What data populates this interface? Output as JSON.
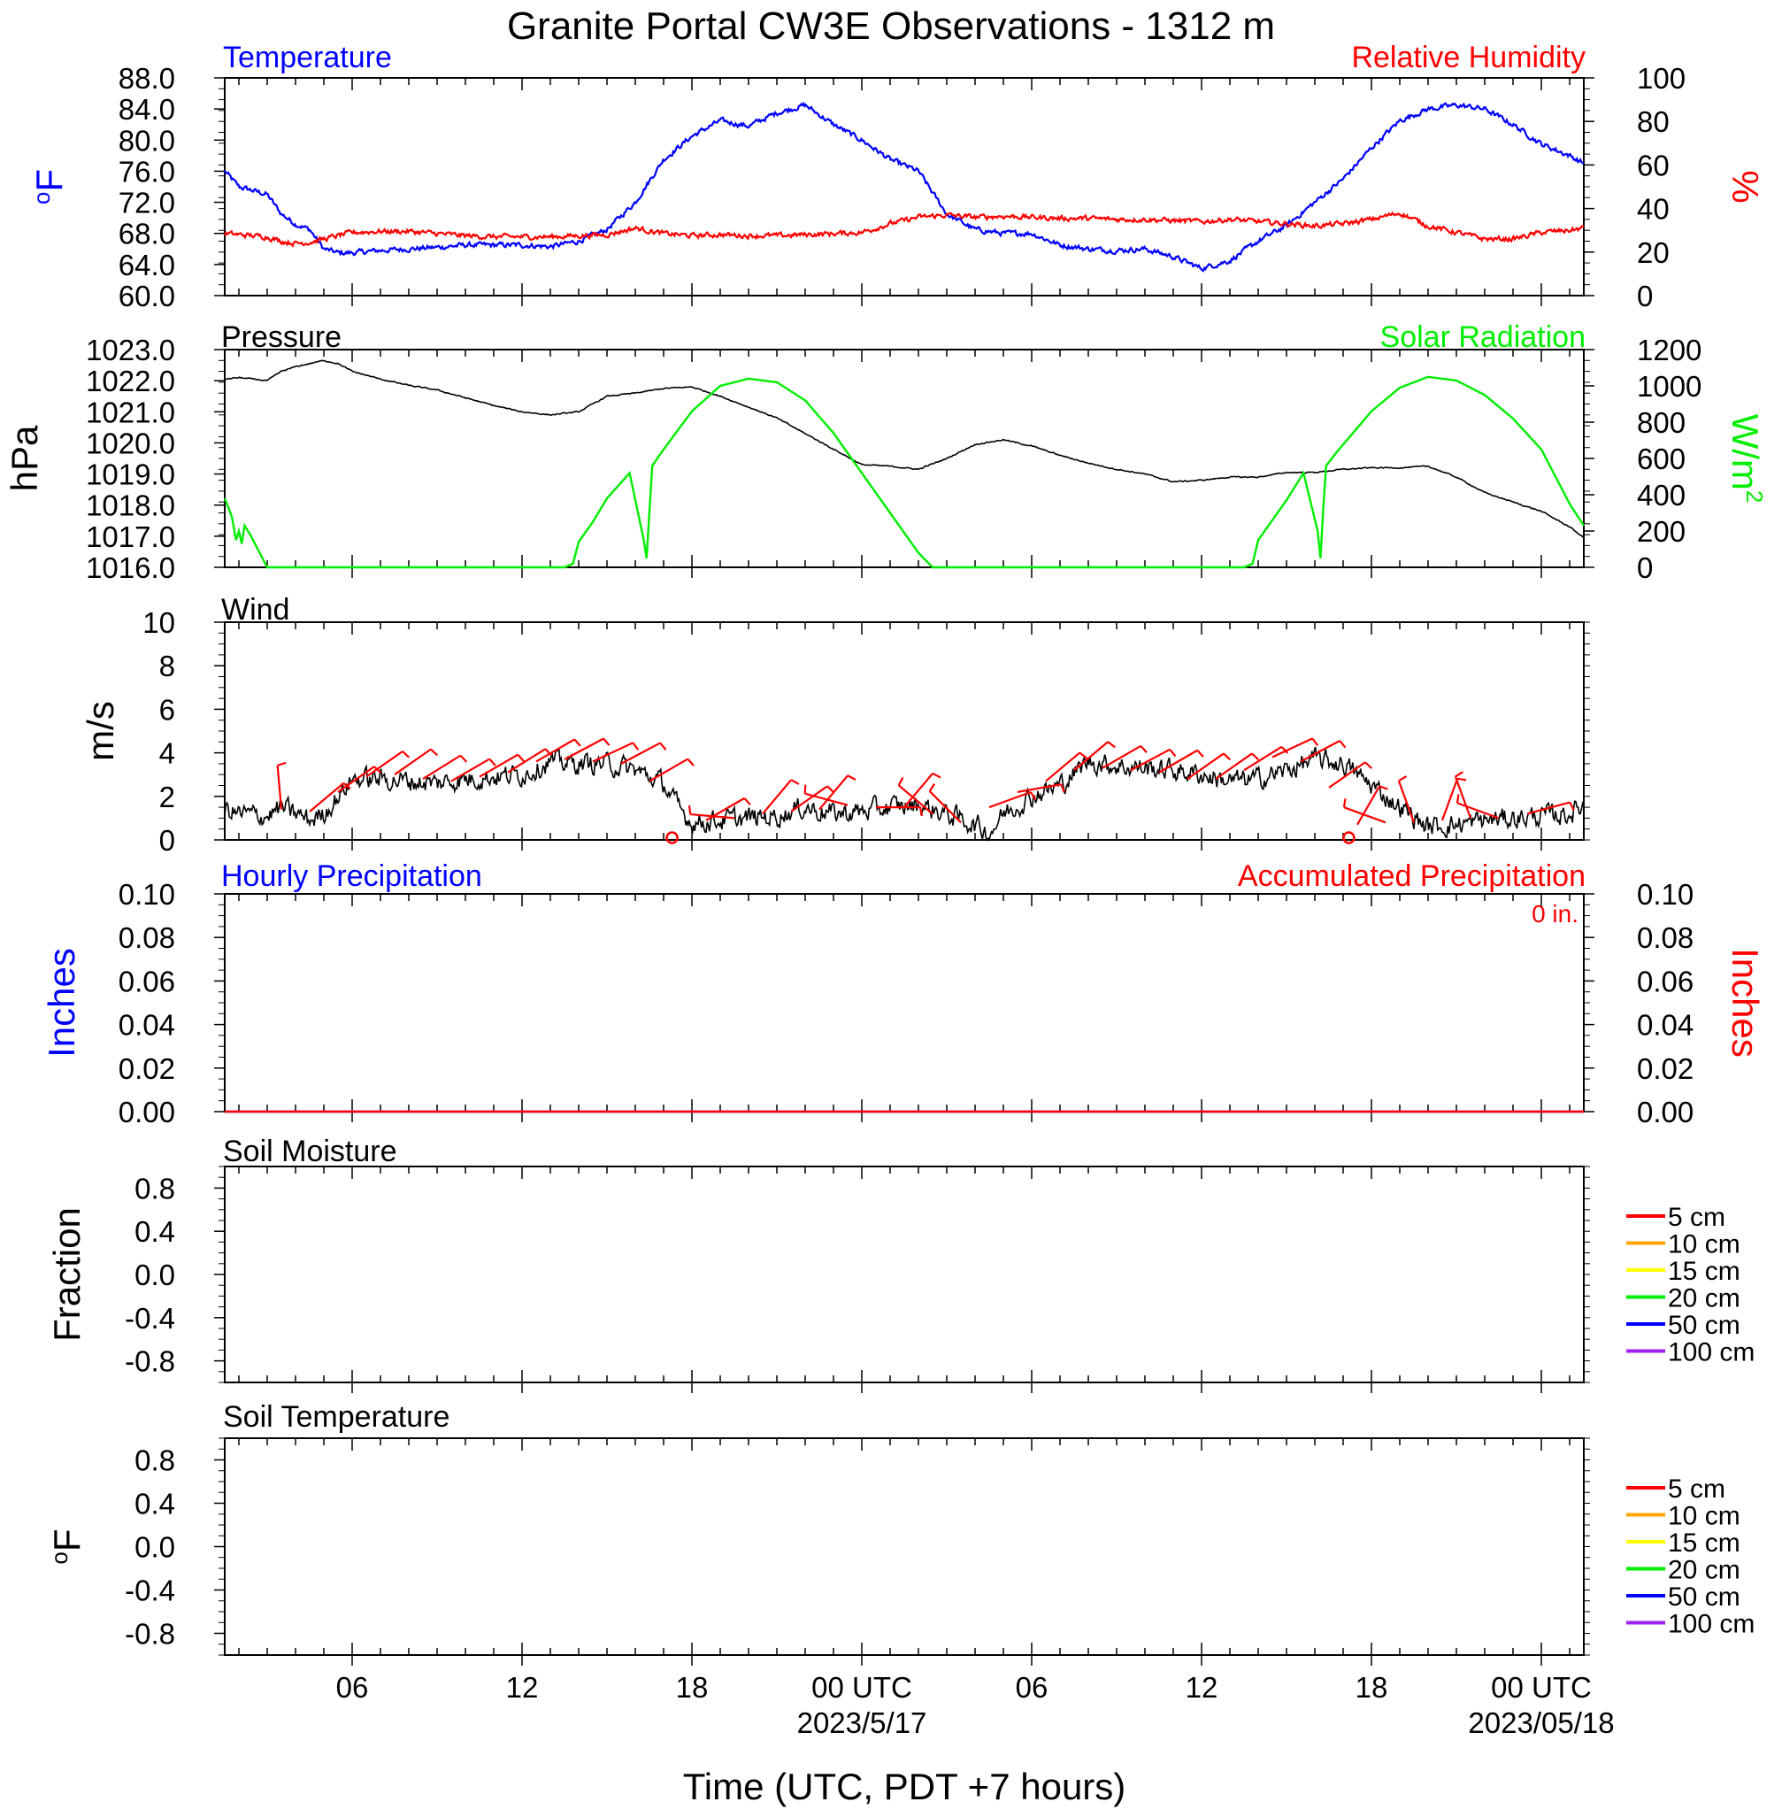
{
  "page": {
    "title": "Granite Portal CW3E Observations - 1312 m",
    "xlabel": "Time (UTC, PDT +7 hours)"
  },
  "time_axis": {
    "range_hours": [
      1.5,
      49.5
    ],
    "ticks": [
      {
        "h": 6,
        "label": "06"
      },
      {
        "h": 12,
        "label": "12"
      },
      {
        "h": 18,
        "label": "18"
      },
      {
        "h": 24,
        "label": "00 UTC",
        "sub": "2023/5/17"
      },
      {
        "h": 30,
        "label": "06"
      },
      {
        "h": 36,
        "label": "12"
      },
      {
        "h": 42,
        "label": "18"
      },
      {
        "h": 48,
        "label": "00 UTC",
        "sub": "2023/05/18"
      }
    ]
  },
  "colors": {
    "blue": "#0000ff",
    "red": "#ff0000",
    "green": "#00ee00",
    "black": "#000000",
    "orange": "#ffa500",
    "yellow": "#ffff00",
    "purple": "#a020f0"
  },
  "chart_data": [
    {
      "type": "line",
      "panel": "temperature_humidity",
      "title_left": "Temperature",
      "title_right": "Relative Humidity",
      "ylabel_left": "oF",
      "ylabel_right": "%",
      "ylim_left": [
        60,
        88
      ],
      "ylim_right": [
        0,
        100
      ],
      "yticks_left": [
        "88.0",
        "84.0",
        "80.0",
        "76.0",
        "72.0",
        "68.0",
        "64.0",
        "60.0"
      ],
      "yticks_right": [
        "100",
        "80",
        "60",
        "40",
        "20",
        "0"
      ],
      "series": [
        {
          "name": "Temperature",
          "axis": "left",
          "color": "#0000ff",
          "noise": 0.35,
          "x": [
            1.5,
            2,
            3,
            3.5,
            4,
            4.5,
            5,
            5.5,
            6,
            7,
            8,
            9,
            10,
            11,
            12,
            13,
            14,
            15,
            16,
            17,
            17.5,
            18,
            19,
            20,
            21,
            22,
            23,
            24,
            25,
            26,
            27,
            28,
            29,
            30,
            31,
            32,
            33,
            34,
            35,
            36,
            37,
            38,
            39,
            40,
            41,
            42,
            43,
            44,
            45,
            46,
            47,
            48,
            49,
            49.5
          ],
          "y": [
            76,
            74,
            73,
            70.5,
            69.2,
            68.5,
            66,
            65.5,
            65.5,
            65.8,
            66,
            66.2,
            66.5,
            66.5,
            66.5,
            66.3,
            67,
            68.5,
            72,
            77.5,
            79,
            80.5,
            82.5,
            81.8,
            83.5,
            84.5,
            82,
            80,
            77.5,
            76,
            70.5,
            68.5,
            68,
            68,
            66.5,
            66,
            65.8,
            66,
            65,
            63.5,
            64.5,
            67,
            69,
            72,
            75,
            79,
            82.5,
            84,
            84.5,
            84,
            82,
            79.5,
            78,
            77
          ]
        },
        {
          "name": "Relative Humidity",
          "axis": "right",
          "color": "#ff0000",
          "noise": 1.2,
          "x": [
            1.5,
            2,
            3,
            3.5,
            4,
            4.5,
            5,
            6,
            7,
            8,
            9,
            10,
            11,
            12,
            13,
            14,
            15,
            16,
            17,
            18,
            19,
            20,
            21,
            22,
            23,
            24,
            25,
            26,
            27,
            28,
            29,
            30,
            31,
            32,
            33,
            34,
            35,
            36,
            37,
            38,
            39,
            40,
            41,
            42,
            43,
            44,
            45,
            46,
            47,
            48,
            49,
            49.5
          ],
          "y": [
            28.5,
            28,
            27,
            25,
            24,
            24.5,
            26,
            29,
            29.5,
            29.5,
            28.5,
            27.5,
            27,
            27,
            27,
            27.5,
            28,
            31,
            28.5,
            27.5,
            28,
            27.5,
            27.5,
            28,
            28.5,
            29,
            33,
            36,
            37,
            36,
            36.5,
            36,
            35.5,
            35.5,
            35,
            35,
            34.5,
            34,
            35,
            34,
            33,
            32,
            33,
            35,
            38,
            32,
            29,
            26,
            26,
            29,
            30,
            31
          ]
        }
      ]
    },
    {
      "type": "line",
      "panel": "pressure_solar",
      "title_left": "Pressure",
      "title_right": "Solar Radiation",
      "ylabel_left": "hPa",
      "ylabel_right": "W/m2",
      "ylim_left": [
        1016,
        1023
      ],
      "ylim_right": [
        0,
        1200
      ],
      "yticks_left": [
        "1023.0",
        "1022.0",
        "1021.0",
        "1020.0",
        "1019.0",
        "1018.0",
        "1017.0",
        "1016.0"
      ],
      "yticks_right": [
        "1200",
        "1000",
        "800",
        "600",
        "400",
        "200",
        "0"
      ],
      "series": [
        {
          "name": "Pressure",
          "axis": "left",
          "color": "#000000",
          "noise": 0.02,
          "x": [
            1.5,
            2,
            3,
            3.5,
            4,
            5,
            5.5,
            6,
            7,
            8,
            9,
            10,
            11,
            12,
            13,
            14,
            15,
            16,
            17,
            18,
            19,
            20,
            21,
            22,
            23,
            24,
            25,
            26,
            27,
            28,
            29,
            30,
            31,
            32,
            33,
            34,
            35,
            36,
            37,
            38,
            39,
            40,
            41,
            42,
            43,
            44,
            45,
            46,
            47,
            48,
            49,
            49.5
          ],
          "y": [
            1022.05,
            1022.1,
            1022.0,
            1022.3,
            1022.45,
            1022.65,
            1022.55,
            1022.3,
            1022.05,
            1021.85,
            1021.7,
            1021.45,
            1021.2,
            1021.0,
            1020.9,
            1021.0,
            1021.5,
            1021.6,
            1021.75,
            1021.8,
            1021.5,
            1021.15,
            1020.8,
            1020.3,
            1019.8,
            1019.3,
            1019.25,
            1019.15,
            1019.5,
            1019.95,
            1020.1,
            1019.9,
            1019.6,
            1019.35,
            1019.15,
            1019.0,
            1018.75,
            1018.8,
            1018.9,
            1018.9,
            1019.05,
            1019.05,
            1019.15,
            1019.2,
            1019.2,
            1019.25,
            1018.9,
            1018.4,
            1018.1,
            1017.8,
            1017.3,
            1016.95
          ]
        },
        {
          "name": "Solar Radiation",
          "axis": "right",
          "color": "#00ee00",
          "noise": 0,
          "x": [
            1.5,
            1.75,
            1.9,
            2,
            2.1,
            2.2,
            2.4,
            2.6,
            3,
            13.5,
            13.8,
            14,
            14.5,
            15,
            15.8,
            16.3,
            16.4,
            16.5,
            16.6,
            17,
            18,
            19,
            20,
            21,
            22,
            23,
            24,
            25,
            26,
            26.5,
            27,
            37.5,
            37.8,
            38,
            38.5,
            39,
            39.6,
            40.1,
            40.2,
            40.3,
            40.4,
            40.8,
            42,
            43,
            44,
            45,
            46,
            47,
            48,
            48.5,
            49,
            49.5
          ],
          "y": [
            380,
            280,
            150,
            200,
            130,
            230,
            180,
            120,
            0,
            0,
            20,
            140,
            250,
            380,
            520,
            150,
            50,
            310,
            560,
            650,
            860,
            1000,
            1040,
            1020,
            920,
            740,
            520,
            300,
            80,
            0,
            0,
            0,
            20,
            150,
            260,
            370,
            520,
            200,
            50,
            330,
            560,
            640,
            860,
            990,
            1050,
            1030,
            950,
            820,
            650,
            500,
            350,
            230
          ]
        }
      ]
    },
    {
      "type": "line",
      "panel": "wind",
      "title_left": "Wind",
      "ylabel_left": "m/s",
      "ylim_left": [
        0,
        10
      ],
      "yticks_left": [
        "10",
        "8",
        "6",
        "4",
        "2",
        "0"
      ],
      "series": [
        {
          "name": "Wind speed",
          "axis": "left",
          "color": "#000000",
          "noise": 0.5,
          "x": [
            1.5,
            2,
            3,
            3.5,
            4,
            4.5,
            5,
            5.5,
            6,
            7,
            8,
            9,
            10,
            11,
            12,
            13,
            14,
            15,
            16,
            17,
            17.5,
            18,
            19,
            20,
            21,
            22,
            23,
            24,
            25,
            26,
            27,
            28,
            28.5,
            29,
            30,
            31,
            32,
            33,
            34,
            35,
            36,
            37,
            38,
            39,
            40,
            41,
            42,
            43,
            44,
            45,
            46,
            47,
            48,
            49,
            49.5
          ],
          "y": [
            1.4,
            1.2,
            1.1,
            1.5,
            1.2,
            0.9,
            1.2,
            2,
            2.8,
            2.8,
            2.7,
            2.6,
            2.8,
            2.9,
            3,
            3.6,
            3.5,
            3.5,
            3.2,
            2.6,
            1.5,
            0.8,
            0.9,
            1,
            1.1,
            1.5,
            1.2,
            1.3,
            1.5,
            1.6,
            1.2,
            0.7,
            0.3,
            1.2,
            2,
            2.5,
            3.6,
            3.4,
            3.3,
            3.2,
            3,
            2.7,
            2.8,
            3.2,
            3.7,
            3.5,
            2.5,
            1.5,
            0.6,
            0.7,
            0.9,
            1,
            1.1,
            1.2,
            1.6
          ]
        }
      ],
      "barbs": {
        "color": "#ff0000",
        "calm_markers_h": [
          17.3,
          41.2
        ],
        "items": [
          {
            "h": 3.5,
            "deg": 355,
            "spd": 1.4
          },
          {
            "h": 4.5,
            "deg": 50,
            "spd": 1.3
          },
          {
            "h": 5.5,
            "deg": 55,
            "spd": 2.2
          },
          {
            "h": 6.5,
            "deg": 55,
            "spd": 2.9
          },
          {
            "h": 7.5,
            "deg": 55,
            "spd": 3
          },
          {
            "h": 8.5,
            "deg": 58,
            "spd": 2.8
          },
          {
            "h": 9.5,
            "deg": 60,
            "spd": 2.7
          },
          {
            "h": 10.5,
            "deg": 60,
            "spd": 2.9
          },
          {
            "h": 11.5,
            "deg": 58,
            "spd": 3.1
          },
          {
            "h": 12.5,
            "deg": 60,
            "spd": 3.6
          },
          {
            "h": 13.5,
            "deg": 62,
            "spd": 3.7
          },
          {
            "h": 14.5,
            "deg": 65,
            "spd": 3.6
          },
          {
            "h": 15.5,
            "deg": 62,
            "spd": 3.5
          },
          {
            "h": 16.5,
            "deg": 60,
            "spd": 2.7
          },
          {
            "h": 18.5,
            "deg": 60,
            "spd": 0.9
          },
          {
            "h": 19.5,
            "deg": 275,
            "spd": 1
          },
          {
            "h": 20.5,
            "deg": 40,
            "spd": 1.2
          },
          {
            "h": 21.5,
            "deg": 55,
            "spd": 1.3
          },
          {
            "h": 22.5,
            "deg": 40,
            "spd": 1.4
          },
          {
            "h": 23.5,
            "deg": 285,
            "spd": 1.6
          },
          {
            "h": 24.5,
            "deg": 90,
            "spd": 1.5
          },
          {
            "h": 25.5,
            "deg": 40,
            "spd": 1.5
          },
          {
            "h": 26.5,
            "deg": 310,
            "spd": 1.2
          },
          {
            "h": 27.5,
            "deg": 315,
            "spd": 0.8
          },
          {
            "h": 28.5,
            "deg": 70,
            "spd": 1.5
          },
          {
            "h": 29.5,
            "deg": 80,
            "spd": 2.2
          },
          {
            "h": 30.5,
            "deg": 50,
            "spd": 2.7
          },
          {
            "h": 31.5,
            "deg": 50,
            "spd": 3.2
          },
          {
            "h": 32.5,
            "deg": 60,
            "spd": 3.3
          },
          {
            "h": 33.5,
            "deg": 62,
            "spd": 3.2
          },
          {
            "h": 34.5,
            "deg": 60,
            "spd": 3.1
          },
          {
            "h": 35.5,
            "deg": 55,
            "spd": 2.8
          },
          {
            "h": 36.5,
            "deg": 55,
            "spd": 2.8
          },
          {
            "h": 37.5,
            "deg": 58,
            "spd": 3.2
          },
          {
            "h": 38.5,
            "deg": 65,
            "spd": 3.8
          },
          {
            "h": 39.5,
            "deg": 62,
            "spd": 3.6
          },
          {
            "h": 40.5,
            "deg": 55,
            "spd": 2.4
          },
          {
            "h": 41.5,
            "deg": 30,
            "spd": 0.7
          },
          {
            "h": 42.5,
            "deg": 290,
            "spd": 0.8
          },
          {
            "h": 43.5,
            "deg": 340,
            "spd": 0.8
          },
          {
            "h": 44.5,
            "deg": 20,
            "spd": 0.9
          },
          {
            "h": 45.5,
            "deg": 340,
            "spd": 1
          },
          {
            "h": 46.5,
            "deg": 290,
            "spd": 1
          },
          {
            "h": 47.5,
            "deg": 75,
            "spd": 1.2
          }
        ]
      }
    },
    {
      "type": "line",
      "panel": "precipitation",
      "title_left": "Hourly Precipitation",
      "title_right": "Accumulated Precipitation",
      "annotation": "0 in.",
      "ylabel_left": "Inches",
      "ylabel_right": "Inches",
      "ylim_left": [
        0,
        0.1
      ],
      "ylim_right": [
        0,
        0.1
      ],
      "yticks_left": [
        "0.10",
        "0.08",
        "0.06",
        "0.04",
        "0.02",
        "0.00"
      ],
      "yticks_right": [
        "0.10",
        "0.08",
        "0.06",
        "0.04",
        "0.02",
        "0.00"
      ],
      "series": [
        {
          "name": "Hourly Precipitation",
          "axis": "left",
          "color": "#0000ff",
          "noise": 0,
          "x": [
            1.5,
            49.5
          ],
          "y": [
            0,
            0
          ]
        },
        {
          "name": "Accumulated Precipitation",
          "axis": "right",
          "color": "#ff0000",
          "noise": 0,
          "x": [
            1.5,
            49.5
          ],
          "y": [
            0,
            0
          ]
        }
      ]
    },
    {
      "type": "line",
      "panel": "soil_moisture",
      "title_left": "Soil Moisture",
      "ylabel_left": "Fraction",
      "ylim_left": [
        -1,
        1
      ],
      "yticks_left": [
        "0.8",
        "0.4",
        "0.0",
        "-0.4",
        "-0.8"
      ],
      "legend": [
        "5 cm",
        "10 cm",
        "15 cm",
        "20 cm",
        "50 cm",
        "100 cm"
      ],
      "series": []
    },
    {
      "type": "line",
      "panel": "soil_temperature",
      "title_left": "Soil Temperature",
      "ylabel_left": "oF",
      "ylim_left": [
        -1,
        1
      ],
      "yticks_left": [
        "0.8",
        "0.4",
        "0.0",
        "-0.4",
        "-0.8"
      ],
      "legend": [
        "5 cm",
        "10 cm",
        "15 cm",
        "20 cm",
        "50 cm",
        "100 cm"
      ],
      "series": []
    }
  ],
  "legend_colors": [
    "#ff0000",
    "#ffa500",
    "#ffff00",
    "#00ee00",
    "#0000ff",
    "#a020f0"
  ]
}
